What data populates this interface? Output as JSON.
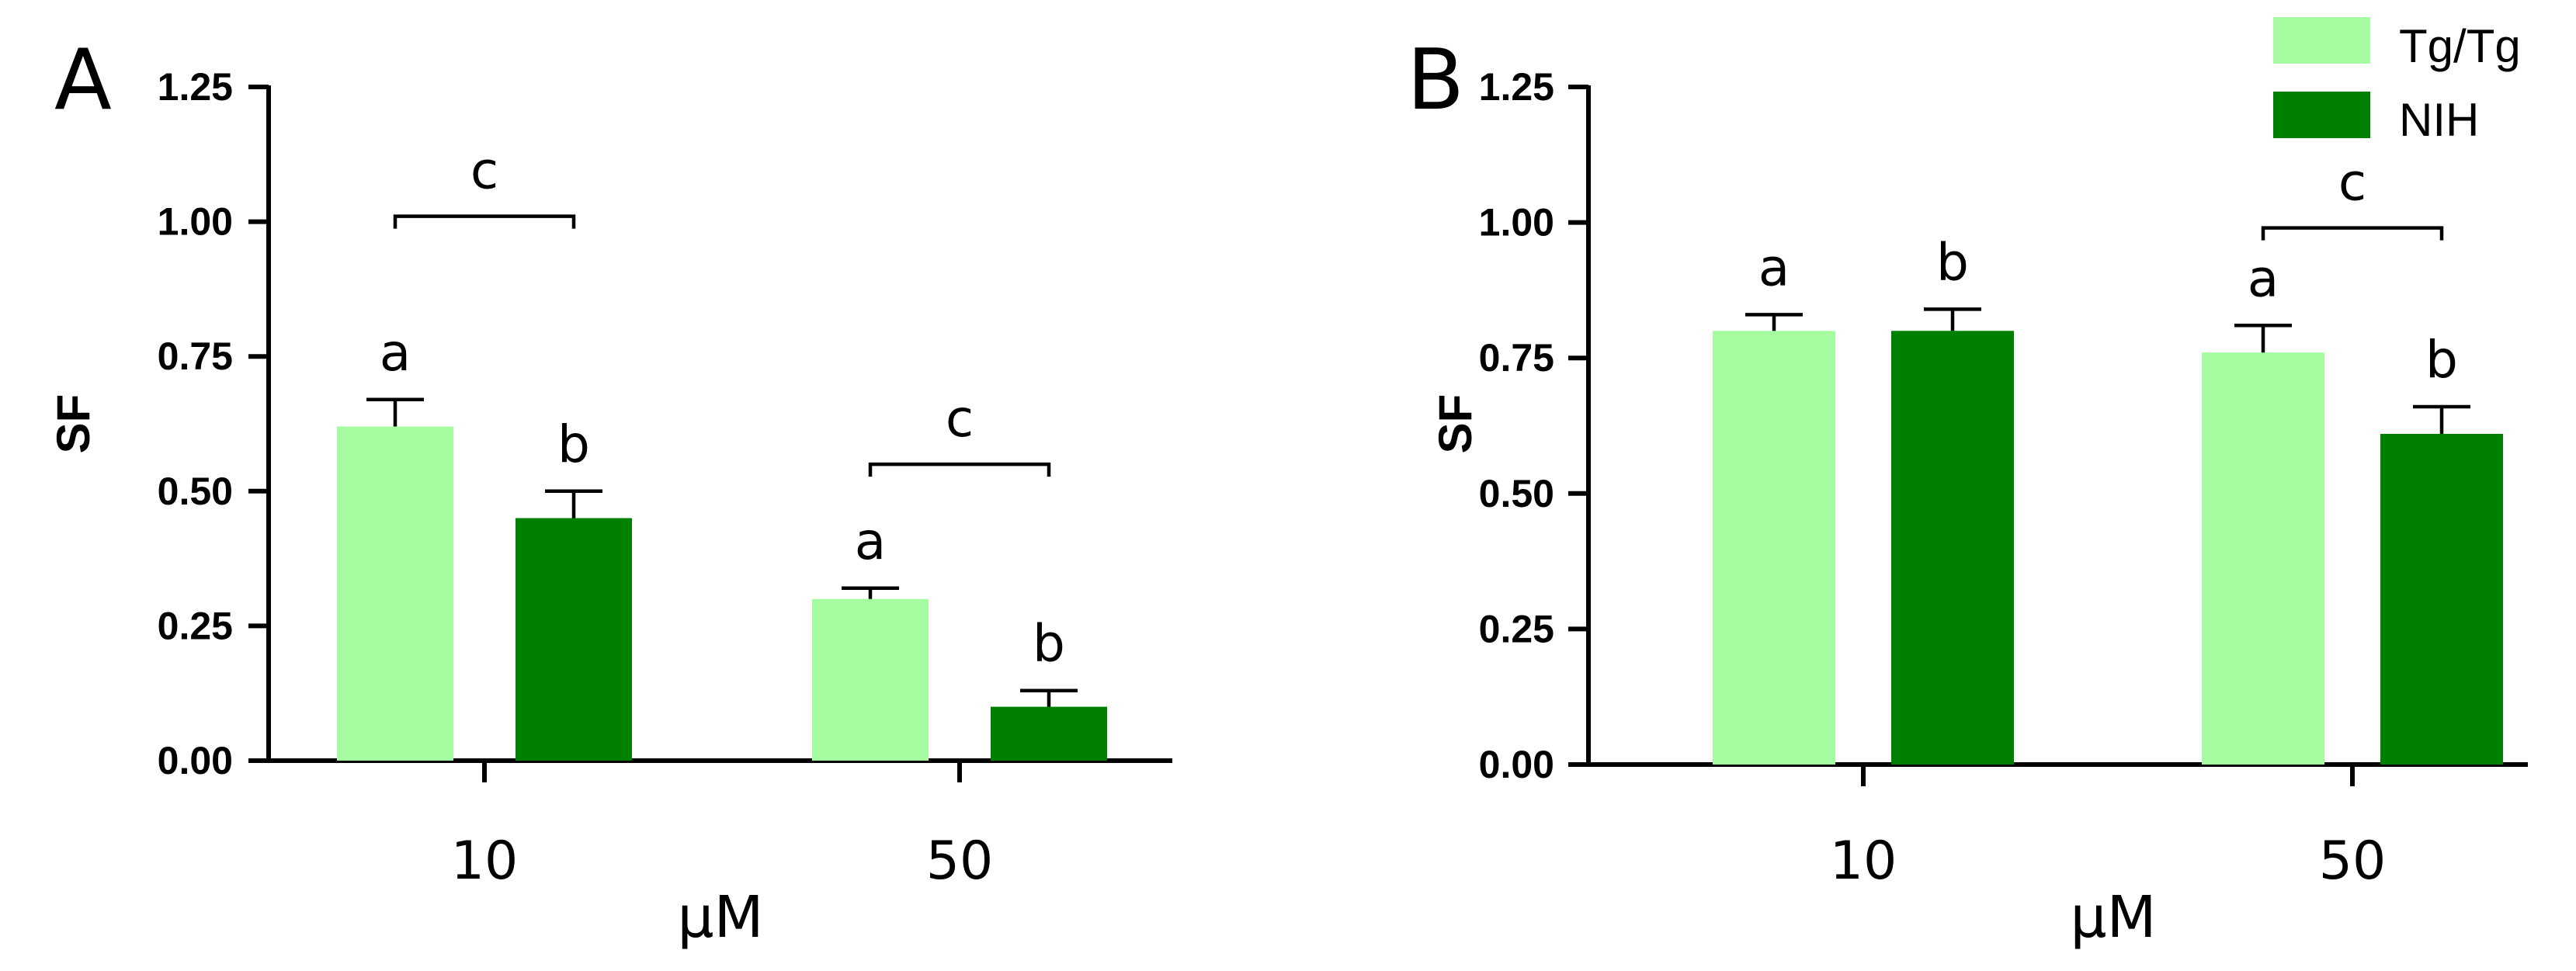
{
  "legend": {
    "entries": [
      {
        "label": "Tg/Tg",
        "color": "#a6fca0"
      },
      {
        "label": "NIH",
        "color": "#008000"
      }
    ]
  },
  "chart_data": [
    {
      "type": "bar",
      "panel_label": "A",
      "ylabel": "SF",
      "xlabel": "µM",
      "categories": [
        "10",
        "50"
      ],
      "ylim": [
        0,
        1.25
      ],
      "yticks": [
        "0.00",
        "0.25",
        "0.50",
        "0.75",
        "1.00",
        "1.25"
      ],
      "series": [
        {
          "name": "Tg/Tg",
          "color": "#a6fca0",
          "values": [
            0.62,
            0.3
          ],
          "errors": [
            0.05,
            0.02
          ],
          "letters": [
            "a",
            "a"
          ]
        },
        {
          "name": "NIH",
          "color": "#008000",
          "values": [
            0.45,
            0.1
          ],
          "errors": [
            0.05,
            0.03
          ],
          "letters": [
            "b",
            "b"
          ]
        }
      ],
      "comparisons": [
        {
          "category": 0,
          "label": "c",
          "level": 1.01
        },
        {
          "category": 1,
          "label": "c",
          "level": 0.55
        }
      ]
    },
    {
      "type": "bar",
      "panel_label": "B",
      "ylabel": "SF",
      "xlabel": "µM",
      "categories": [
        "10",
        "50"
      ],
      "ylim": [
        0,
        1.25
      ],
      "yticks": [
        "0.00",
        "0.25",
        "0.50",
        "0.75",
        "1.00",
        "1.25"
      ],
      "series": [
        {
          "name": "Tg/Tg",
          "color": "#a6fca0",
          "values": [
            0.8,
            0.76
          ],
          "errors": [
            0.03,
            0.05
          ],
          "letters": [
            "a",
            "a"
          ]
        },
        {
          "name": "NIH",
          "color": "#008000",
          "values": [
            0.8,
            0.61
          ],
          "errors": [
            0.04,
            0.05
          ],
          "letters": [
            "b",
            "b"
          ]
        }
      ],
      "comparisons": [
        {
          "category": 1,
          "label": "c",
          "level": 0.99
        }
      ]
    }
  ]
}
